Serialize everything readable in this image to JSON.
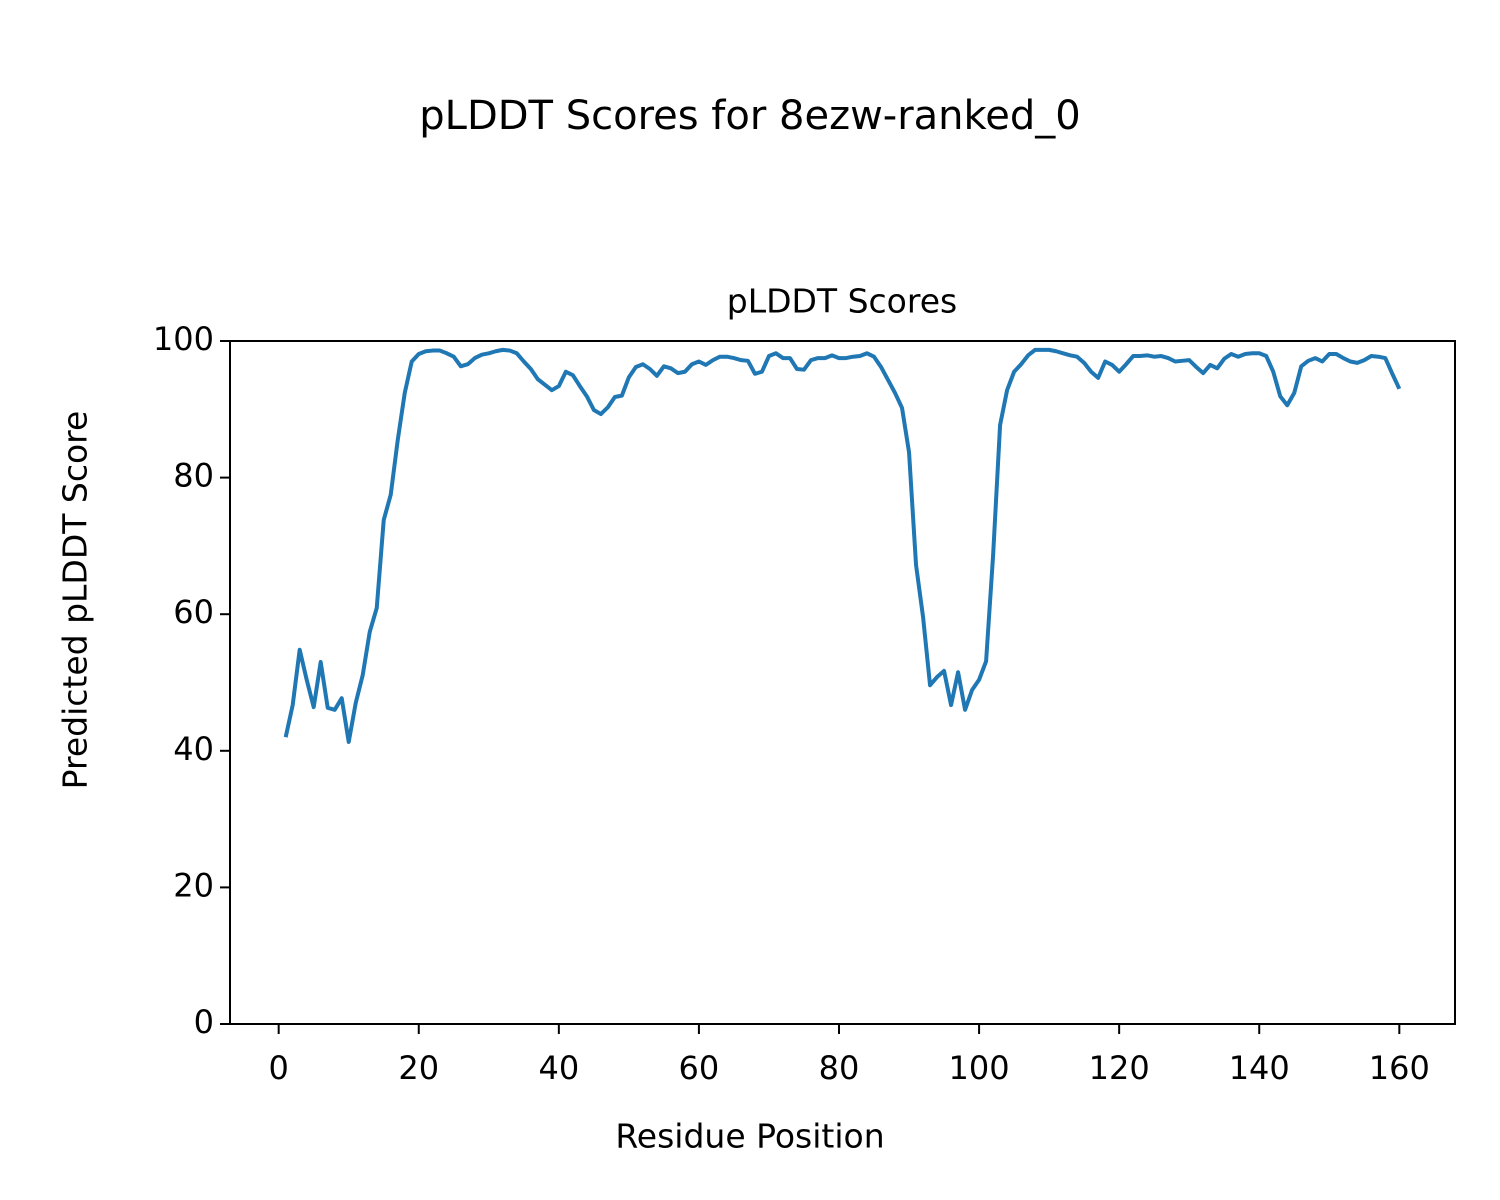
{
  "chart_data": {
    "type": "line",
    "suptitle": "pLDDT Scores for 8ezw-ranked_0",
    "title": "pLDDT Scores",
    "x_label": "Residue Position",
    "y_label": "Predicted pLDDT Score",
    "x": [
      1,
      2,
      3,
      4,
      5,
      6,
      7,
      8,
      9,
      10,
      11,
      12,
      13,
      14,
      15,
      16,
      17,
      18,
      19,
      20,
      21,
      22,
      23,
      24,
      25,
      26,
      27,
      28,
      29,
      30,
      31,
      32,
      33,
      34,
      35,
      36,
      37,
      38,
      39,
      40,
      41,
      42,
      43,
      44,
      45,
      46,
      47,
      48,
      49,
      50,
      51,
      52,
      53,
      54,
      55,
      56,
      57,
      58,
      59,
      60,
      61,
      62,
      63,
      64,
      65,
      66,
      67,
      68,
      69,
      70,
      71,
      72,
      73,
      74,
      75,
      76,
      77,
      78,
      79,
      80,
      81,
      82,
      83,
      84,
      85,
      86,
      87,
      88,
      89,
      90,
      91,
      92,
      93,
      94,
      95,
      96,
      97,
      98,
      99,
      100,
      101,
      102,
      103,
      104,
      105,
      106,
      107,
      108,
      109,
      110,
      111,
      112,
      113,
      114,
      115,
      116,
      117,
      118,
      119,
      120,
      121,
      122,
      123,
      124,
      125,
      126,
      127,
      128,
      129,
      130,
      131,
      132,
      133,
      134,
      135,
      136,
      137,
      138,
      139,
      140,
      141,
      142,
      143,
      144,
      145,
      146,
      147,
      148,
      149,
      150,
      151,
      152,
      153,
      154,
      155,
      156,
      157,
      158,
      159,
      160
    ],
    "series": [
      {
        "name": "pLDDT",
        "color": "#1f77b4",
        "values": [
          42.0,
          46.7,
          54.8,
          50.4,
          46.4,
          53.0,
          46.3,
          46.0,
          47.7,
          41.3,
          47.0,
          51.1,
          57.4,
          60.9,
          73.8,
          77.5,
          85.5,
          92.4,
          97.0,
          98.1,
          98.5,
          98.6,
          98.6,
          98.2,
          97.7,
          96.3,
          96.6,
          97.5,
          98.0,
          98.2,
          98.5,
          98.7,
          98.6,
          98.2,
          97.0,
          95.9,
          94.4,
          93.6,
          92.8,
          93.4,
          95.5,
          95.0,
          93.4,
          91.9,
          89.9,
          89.3,
          90.3,
          91.8,
          92.0,
          94.7,
          96.2,
          96.6,
          95.9,
          94.9,
          96.3,
          96.0,
          95.3,
          95.5,
          96.6,
          97.0,
          96.5,
          97.2,
          97.7,
          97.7,
          97.5,
          97.2,
          97.1,
          95.2,
          95.5,
          97.8,
          98.2,
          97.5,
          97.5,
          95.9,
          95.8,
          97.2,
          97.5,
          97.5,
          97.9,
          97.5,
          97.5,
          97.7,
          97.8,
          98.2,
          97.7,
          96.2,
          94.3,
          92.4,
          90.2,
          83.7,
          67.2,
          59.6,
          49.6,
          50.8,
          51.7,
          46.7,
          51.5,
          46.0,
          48.9,
          50.4,
          53.1,
          68.6,
          87.7,
          92.8,
          95.5,
          96.6,
          97.9,
          98.7,
          98.7,
          98.7,
          98.5,
          98.2,
          97.9,
          97.7,
          96.8,
          95.5,
          94.6,
          97.0,
          96.5,
          95.5,
          96.6,
          97.8,
          97.8,
          97.9,
          97.7,
          97.8,
          97.5,
          97.0,
          97.1,
          97.2,
          96.2,
          95.3,
          96.5,
          96.0,
          97.4,
          98.1,
          97.7,
          98.1,
          98.2,
          98.2,
          97.8,
          95.5,
          91.9,
          90.6,
          92.4,
          96.3,
          97.1,
          97.5,
          97.0,
          98.1,
          98.1,
          97.5,
          97.0,
          96.8,
          97.2,
          97.8,
          97.7,
          97.5,
          95.2,
          93.0
        ]
      }
    ],
    "xlim": [
      -6.95,
      167.95
    ],
    "xticks": [
      0,
      20,
      40,
      60,
      80,
      100,
      120,
      140,
      160
    ],
    "ylim": [
      0,
      100
    ],
    "yticks": [
      0,
      20,
      40,
      60,
      80,
      100
    ],
    "grid": false
  }
}
